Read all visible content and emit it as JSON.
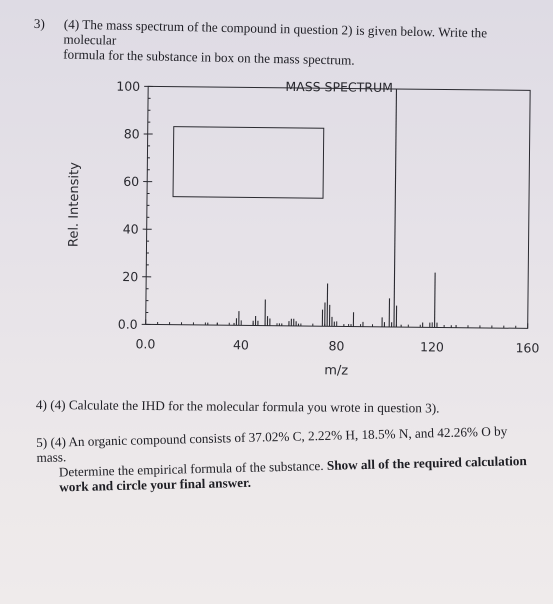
{
  "q3": {
    "number": "3)",
    "line1": "(4) The mass spectrum of the compound in question 2) is given below.  Write the molecular",
    "line2": "formula for the substance in box on the mass spectrum."
  },
  "q4": {
    "number": "4)",
    "text": "(4) Calculate the IHD for the molecular formula you wrote in question 3)."
  },
  "q5": {
    "number": "5)",
    "line1": "(4) An organic compound consists of 37.02% C, 2.22% H, 18.5% N, and 42.26% O by mass.",
    "line2a": "Determine the empirical formula of the substance. ",
    "line2b": "Show all of the required calculation",
    "line3": "work and circle your final answer."
  },
  "chart_data": {
    "type": "bar",
    "title": "MASS SPECTRUM",
    "xlabel": "m/z",
    "ylabel": "Rel. Intensity",
    "xlim": [
      0,
      160
    ],
    "ylim": [
      0,
      100
    ],
    "xticks": [
      "0.0",
      "40",
      "80",
      "120",
      "160"
    ],
    "yticks": [
      "0.0",
      "20",
      "40",
      "60",
      "80",
      "100"
    ],
    "grid": false,
    "peaks": [
      {
        "mz": 26,
        "intensity": 1
      },
      {
        "mz": 30,
        "intensity": 1
      },
      {
        "mz": 37,
        "intensity": 1
      },
      {
        "mz": 38,
        "intensity": 3
      },
      {
        "mz": 39,
        "intensity": 6
      },
      {
        "mz": 45,
        "intensity": 2
      },
      {
        "mz": 46,
        "intensity": 4
      },
      {
        "mz": 47,
        "intensity": 2
      },
      {
        "mz": 50,
        "intensity": 11
      },
      {
        "mz": 51,
        "intensity": 4
      },
      {
        "mz": 52,
        "intensity": 3
      },
      {
        "mz": 56,
        "intensity": 1
      },
      {
        "mz": 57,
        "intensity": 1
      },
      {
        "mz": 60,
        "intensity": 2
      },
      {
        "mz": 61,
        "intensity": 3
      },
      {
        "mz": 62,
        "intensity": 3
      },
      {
        "mz": 63,
        "intensity": 2
      },
      {
        "mz": 64,
        "intensity": 1
      },
      {
        "mz": 74,
        "intensity": 7
      },
      {
        "mz": 75,
        "intensity": 10
      },
      {
        "mz": 76,
        "intensity": 18
      },
      {
        "mz": 77,
        "intensity": 9
      },
      {
        "mz": 78,
        "intensity": 4
      },
      {
        "mz": 79,
        "intensity": 2
      },
      {
        "mz": 83,
        "intensity": 1
      },
      {
        "mz": 86,
        "intensity": 1
      },
      {
        "mz": 87,
        "intensity": 6
      },
      {
        "mz": 91,
        "intensity": 2
      },
      {
        "mz": 99,
        "intensity": 4
      },
      {
        "mz": 100,
        "intensity": 2
      },
      {
        "mz": 102,
        "intensity": 12
      },
      {
        "mz": 103,
        "intensity": 2
      },
      {
        "mz": 104,
        "intensity": 100
      },
      {
        "mz": 105,
        "intensity": 9
      },
      {
        "mz": 107,
        "intensity": 1
      },
      {
        "mz": 116,
        "intensity": 2
      },
      {
        "mz": 119,
        "intensity": 2
      },
      {
        "mz": 121,
        "intensity": 23
      },
      {
        "mz": 122,
        "intensity": 2
      },
      {
        "mz": 128,
        "intensity": 1
      },
      {
        "mz": 130,
        "intensity": 1
      }
    ]
  }
}
